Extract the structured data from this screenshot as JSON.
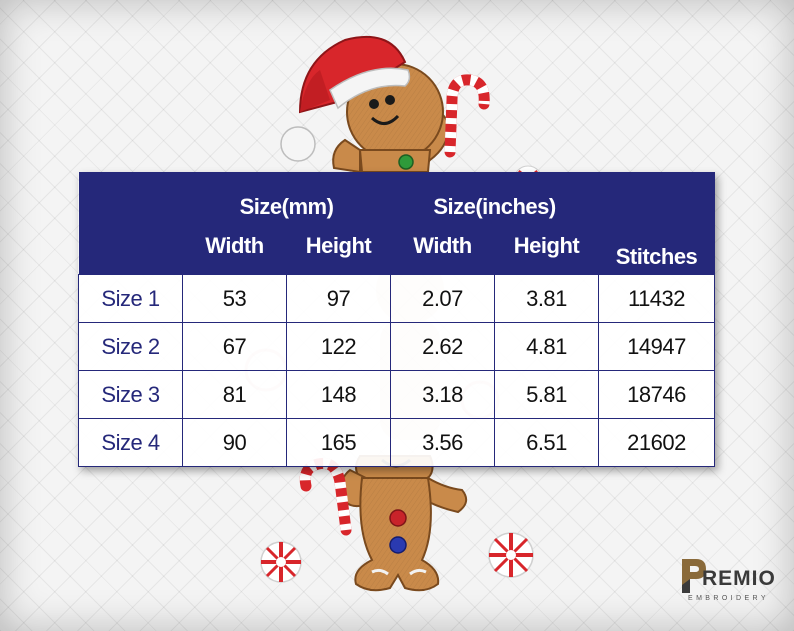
{
  "table": {
    "group_headers": [
      "Size(mm)",
      "Size(inches)",
      "Stitches"
    ],
    "sub_headers": [
      "Width",
      "Height",
      "Width",
      "Height"
    ],
    "rows": [
      {
        "label": "Size 1",
        "mm_width": "53",
        "mm_height": "97",
        "in_width": "2.07",
        "in_height": "3.81",
        "stitches": "11432"
      },
      {
        "label": "Size 2",
        "mm_width": "67",
        "mm_height": "122",
        "in_width": "2.62",
        "in_height": "4.81",
        "stitches": "14947"
      },
      {
        "label": "Size 3",
        "mm_width": "81",
        "mm_height": "148",
        "in_width": "3.18",
        "in_height": "5.81",
        "stitches": "18746"
      },
      {
        "label": "Size 4",
        "mm_width": "90",
        "mm_height": "165",
        "in_width": "3.56",
        "in_height": "6.51",
        "stitches": "21602"
      }
    ]
  },
  "colors": {
    "header_bg": "#25287a",
    "gingerbread": "#c98a4a",
    "santa_hat": "#d8262b"
  },
  "logo": {
    "name": "REMIO",
    "tagline": "EMBROIDERY"
  }
}
